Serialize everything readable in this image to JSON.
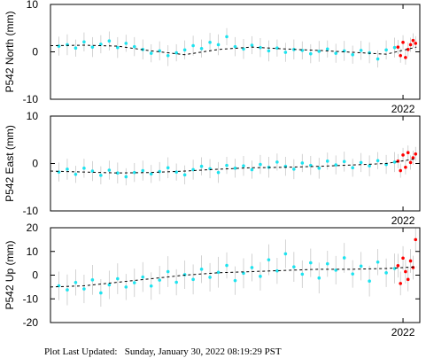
{
  "chart_data": [
    {
      "type": "scatter",
      "ylabel": "P542 North (mm)",
      "xlim": [
        2019.9,
        2022.1
      ],
      "xticks": [
        2022
      ],
      "ylim": [
        -10,
        10
      ],
      "yticks": [
        -10,
        0,
        10
      ],
      "series": [
        {
          "type": "scatter",
          "color": "#1ee3ef",
          "error_color": "#c8c8c8",
          "x": [
            2019.95,
            2020.0,
            2020.05,
            2020.1,
            2020.15,
            2020.2,
            2020.25,
            2020.3,
            2020.35,
            2020.4,
            2020.45,
            2020.5,
            2020.55,
            2020.6,
            2020.65,
            2020.7,
            2020.75,
            2020.8,
            2020.85,
            2020.9,
            2020.95,
            2021.0,
            2021.05,
            2021.1,
            2021.15,
            2021.2,
            2021.25,
            2021.3,
            2021.35,
            2021.4,
            2021.45,
            2021.5,
            2021.55,
            2021.6,
            2021.65,
            2021.7,
            2021.75,
            2021.8,
            2021.85,
            2021.9,
            2021.95
          ],
          "values": [
            1.2,
            1.5,
            0.8,
            2.1,
            1.0,
            1.6,
            2.3,
            0.9,
            1.8,
            1.1,
            0.5,
            -0.3,
            0.2,
            -0.8,
            -0.2,
            0.4,
            1.3,
            0.7,
            2.0,
            1.5,
            3.2,
            1.1,
            0.6,
            1.4,
            0.9,
            0.2,
            0.8,
            -0.1,
            0.5,
            0.3,
            -0.4,
            0.1,
            0.6,
            -0.3,
            0.2,
            -0.6,
            0.3,
            -0.2,
            -1.5,
            0.4,
            0.9
          ],
          "errors": [
            2,
            2.2,
            1.8,
            2,
            2.1,
            1.9,
            2,
            2.2,
            1.8,
            2,
            2.1,
            1.9,
            2,
            2.2,
            1.8,
            2,
            2.1,
            1.9,
            2,
            2.2,
            1.8,
            2,
            2.1,
            1.9,
            2,
            2.2,
            1.8,
            2,
            2.1,
            1.9,
            2,
            2.2,
            1.8,
            2,
            2.1,
            1.9,
            2,
            2.2,
            1.8,
            2,
            2.1
          ]
        },
        {
          "type": "scatter",
          "color": "#ff0000",
          "error_color": "#c8c8c8",
          "x": [
            2021.97,
            2021.985,
            2022.0,
            2022.015,
            2022.03,
            2022.045,
            2022.06,
            2022.075
          ],
          "values": [
            1.0,
            -0.8,
            2.0,
            -1.2,
            0.5,
            1.5,
            2.4,
            1.8
          ],
          "errors": [
            1.5,
            1.5,
            1.5,
            1.5,
            1.5,
            1.5,
            1.5,
            1.5
          ]
        },
        {
          "type": "line",
          "color": "#000000",
          "x": [
            2019.9,
            2020.1,
            2020.3,
            2020.5,
            2020.7,
            2020.9,
            2021.1,
            2021.3,
            2021.5,
            2021.7,
            2021.9,
            2022.08
          ],
          "values": [
            1.3,
            1.4,
            1.2,
            0.2,
            -0.6,
            0.5,
            1.0,
            0.6,
            0.3,
            -0.1,
            -0.5,
            1.0
          ]
        }
      ]
    },
    {
      "type": "scatter",
      "ylabel": "P542 East (mm)",
      "xlim": [
        2019.9,
        2022.1
      ],
      "xticks": [
        2022
      ],
      "ylim": [
        -10,
        10
      ],
      "yticks": [
        -10,
        0,
        10
      ],
      "series": [
        {
          "type": "scatter",
          "color": "#1ee3ef",
          "error_color": "#c8c8c8",
          "x": [
            2019.95,
            2020.0,
            2020.05,
            2020.1,
            2020.15,
            2020.2,
            2020.25,
            2020.3,
            2020.35,
            2020.4,
            2020.45,
            2020.5,
            2020.55,
            2020.6,
            2020.65,
            2020.7,
            2020.75,
            2020.8,
            2020.85,
            2020.9,
            2020.95,
            2021.0,
            2021.05,
            2021.1,
            2021.15,
            2021.2,
            2021.25,
            2021.3,
            2021.35,
            2021.4,
            2021.45,
            2021.5,
            2021.55,
            2021.6,
            2021.65,
            2021.7,
            2021.75,
            2021.8,
            2021.85,
            2021.9,
            2021.95
          ],
          "values": [
            -1.8,
            -1.2,
            -2.3,
            -1.0,
            -1.6,
            -2.5,
            -1.4,
            -2.0,
            -2.8,
            -1.9,
            -1.5,
            -2.2,
            -1.7,
            -0.9,
            -1.8,
            -2.4,
            -1.3,
            -0.6,
            -1.1,
            -1.9,
            -0.4,
            -1.0,
            -0.5,
            -1.3,
            -0.2,
            -0.8,
            0.3,
            -0.6,
            -1.2,
            0.1,
            -0.4,
            -1.0,
            0.5,
            -0.3,
            0.4,
            -0.9,
            0.2,
            -0.5,
            0.6,
            -0.2,
            0.3
          ],
          "errors": [
            2,
            2.2,
            1.8,
            2,
            2.1,
            1.9,
            2,
            2.2,
            1.8,
            2,
            2.1,
            1.9,
            2,
            2.2,
            1.8,
            2,
            2.1,
            1.9,
            2,
            2.2,
            1.8,
            2,
            2.1,
            1.9,
            2,
            2.2,
            1.8,
            2,
            2.1,
            1.9,
            2,
            2.2,
            1.8,
            2,
            2.1,
            1.9,
            2,
            2.2,
            1.8,
            2,
            2.1
          ]
        },
        {
          "type": "scatter",
          "color": "#ff0000",
          "error_color": "#c8c8c8",
          "x": [
            2021.97,
            2021.985,
            2022.0,
            2022.015,
            2022.03,
            2022.045,
            2022.06,
            2022.075
          ],
          "values": [
            0.5,
            -1.5,
            1.8,
            -0.8,
            2.3,
            0.2,
            1.2,
            2.0
          ],
          "errors": [
            1.5,
            1.5,
            1.5,
            1.5,
            1.5,
            1.5,
            1.5,
            1.5
          ]
        },
        {
          "type": "line",
          "color": "#000000",
          "x": [
            2019.9,
            2020.1,
            2020.3,
            2020.5,
            2020.7,
            2020.9,
            2021.1,
            2021.3,
            2021.5,
            2021.7,
            2021.9,
            2022.08
          ],
          "values": [
            -1.6,
            -1.8,
            -2.0,
            -1.9,
            -1.6,
            -1.2,
            -0.9,
            -0.8,
            -0.6,
            -0.3,
            0,
            1.0
          ]
        }
      ]
    },
    {
      "type": "scatter",
      "ylabel": "P542 Up (mm)",
      "xlim": [
        2019.9,
        2022.1
      ],
      "xticks": [
        2022
      ],
      "ylim": [
        -20,
        20
      ],
      "yticks": [
        -20,
        -10,
        0,
        10,
        20
      ],
      "series": [
        {
          "type": "scatter",
          "color": "#1ee3ef",
          "error_color": "#c8c8c8",
          "x": [
            2019.95,
            2020.0,
            2020.05,
            2020.1,
            2020.15,
            2020.2,
            2020.25,
            2020.3,
            2020.35,
            2020.4,
            2020.45,
            2020.5,
            2020.55,
            2020.6,
            2020.65,
            2020.7,
            2020.75,
            2020.8,
            2020.85,
            2020.9,
            2020.95,
            2021.0,
            2021.05,
            2021.1,
            2021.15,
            2021.2,
            2021.25,
            2021.3,
            2021.35,
            2021.4,
            2021.45,
            2021.5,
            2021.55,
            2021.6,
            2021.65,
            2021.7,
            2021.75,
            2021.8,
            2021.85,
            2021.9,
            2021.95
          ],
          "values": [
            -4.5,
            -6.2,
            -3.1,
            -5.8,
            -2.0,
            -7.5,
            -4.1,
            -1.5,
            -5.0,
            -3.2,
            -0.8,
            -4.6,
            -2.1,
            1.5,
            -3.0,
            0.2,
            -1.8,
            2.5,
            -0.9,
            1.2,
            4.1,
            -2.3,
            0.8,
            3.2,
            -0.5,
            6.5,
            1.8,
            9.0,
            3.5,
            0.4,
            5.2,
            -1.2,
            4.8,
            2.1,
            7.3,
            0.5,
            3.8,
            -2.5,
            5.5,
            1.0,
            2.8
          ],
          "errors": [
            6,
            6.5,
            5.5,
            6,
            6.3,
            5.8,
            6,
            6.5,
            5.5,
            6,
            6.3,
            5.8,
            6,
            6.5,
            5.5,
            6,
            6.3,
            5.8,
            6,
            6.5,
            5.5,
            6,
            6.3,
            5.8,
            6,
            6.5,
            5.5,
            6,
            6.3,
            5.8,
            6,
            6.5,
            5.5,
            6,
            6.3,
            5.8,
            6,
            6.5,
            5.5,
            6,
            6.3
          ]
        },
        {
          "type": "scatter",
          "color": "#ff0000",
          "error_color": "#c8c8c8",
          "x": [
            2021.97,
            2021.985,
            2022.0,
            2022.015,
            2022.03,
            2022.045,
            2022.06,
            2022.075
          ],
          "values": [
            4.0,
            -3.5,
            7.2,
            1.5,
            -1.8,
            6.0,
            3.2,
            15.0
          ],
          "errors": [
            5,
            5,
            5,
            5,
            5,
            5,
            5,
            5
          ]
        },
        {
          "type": "line",
          "color": "#000000",
          "x": [
            2019.9,
            2020.1,
            2020.3,
            2020.5,
            2020.7,
            2020.9,
            2021.1,
            2021.3,
            2021.5,
            2021.7,
            2021.9,
            2022.08
          ],
          "values": [
            -5,
            -4.5,
            -3,
            -1.5,
            0,
            1,
            1.5,
            2.0,
            2.5,
            2.5,
            2.8,
            3.5
          ]
        }
      ]
    }
  ],
  "footer": "Plot Last Updated:   Sunday, January 30, 2022 08:19:29 PST"
}
